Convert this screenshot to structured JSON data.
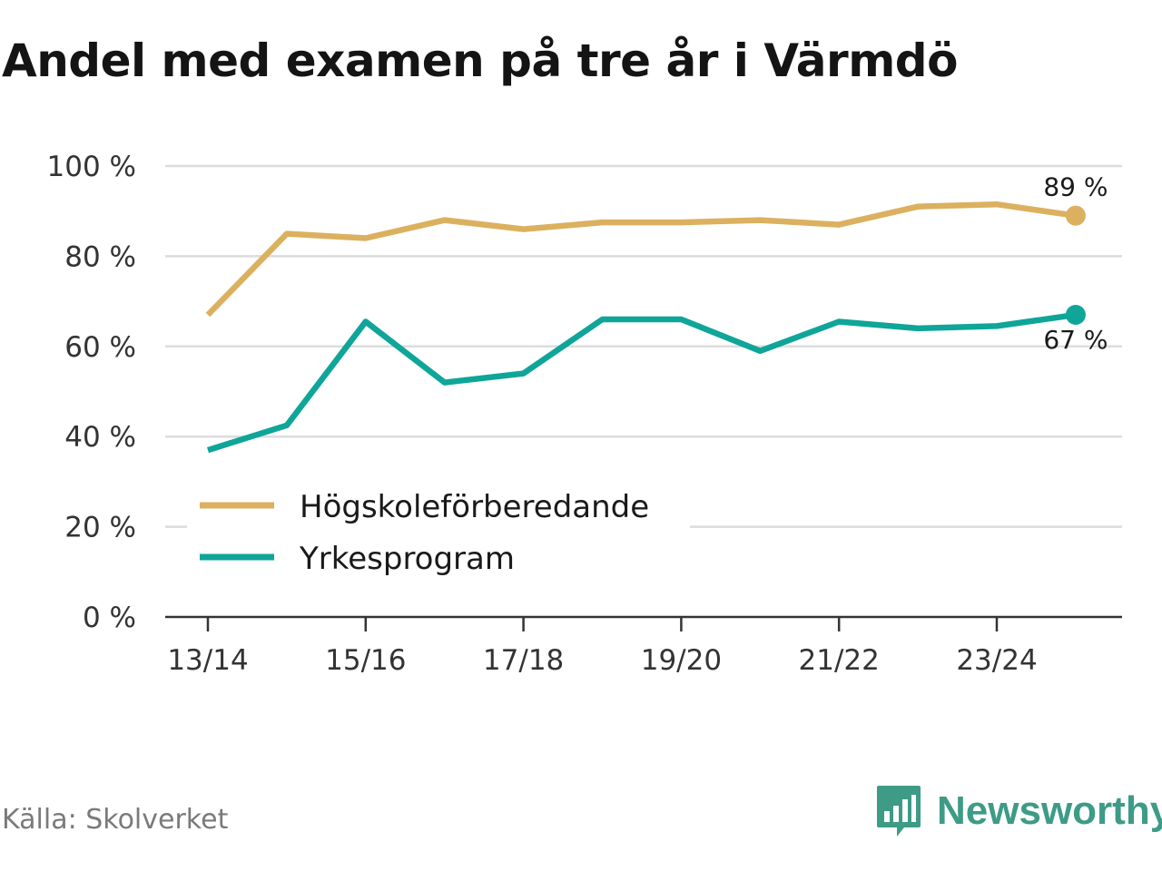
{
  "title": "Andel med examen på tre år i Värmdö",
  "source": "Källa: Skolverket",
  "brand": {
    "name": "Newsworthy",
    "icon": "newsworthy-logo-icon",
    "color": "#3d9b86"
  },
  "chart_data": {
    "type": "line",
    "title": "Andel med examen på tre år i Värmdö",
    "xlabel": "",
    "ylabel": "",
    "x": [
      "13/14",
      "14/15",
      "15/16",
      "16/17",
      "17/18",
      "18/19",
      "19/20",
      "20/21",
      "21/22",
      "22/23",
      "23/24",
      "24/25"
    ],
    "x_tick_labels": [
      "13/14",
      "15/16",
      "17/18",
      "19/20",
      "21/22",
      "23/24"
    ],
    "ylim": [
      0,
      100
    ],
    "y_ticks": [
      0,
      20,
      40,
      60,
      80,
      100
    ],
    "y_tick_labels": [
      "0 %",
      "20 %",
      "40 %",
      "60 %",
      "80 %",
      "100 %"
    ],
    "grid": true,
    "legend_position": "bottom-left",
    "series": [
      {
        "name": "Högskoleförberedande",
        "color": "#dbb05f",
        "values": [
          67,
          85,
          84,
          88,
          86,
          87.5,
          87.5,
          88,
          87,
          91,
          91.5,
          89
        ],
        "end_label": "89 %"
      },
      {
        "name": "Yrkesprogram",
        "color": "#0fa599",
        "values": [
          37,
          42.5,
          65.5,
          52,
          54,
          66,
          66,
          59,
          65.5,
          64,
          64.5,
          67
        ],
        "end_label": "67 %"
      }
    ]
  }
}
